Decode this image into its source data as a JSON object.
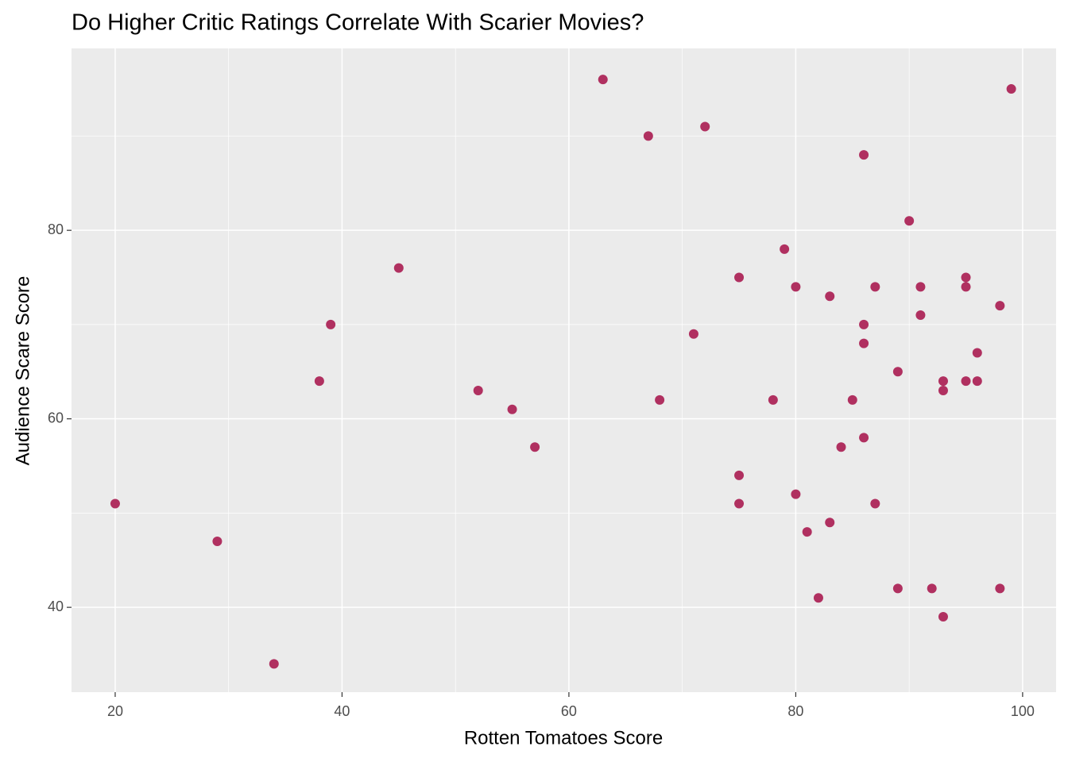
{
  "chart_data": {
    "type": "scatter",
    "title": "Do Higher Critic Ratings Correlate With Scarier Movies?",
    "x_label": "Rotten Tomatoes Score",
    "y_label": "Audience Scare Score",
    "color": "#b03060",
    "grid": true,
    "xlim": [
      16.15,
      102.95
    ],
    "ylim": [
      31,
      99.3
    ],
    "xticks": [
      20,
      40,
      60,
      80,
      100
    ],
    "yticks": [
      40,
      60,
      80
    ],
    "x": [
      20,
      29,
      34,
      38,
      39,
      45,
      52,
      55,
      57,
      63,
      67,
      68,
      71,
      72,
      75,
      75,
      75,
      78,
      79,
      80,
      80,
      81,
      82,
      83,
      83,
      84,
      85,
      86,
      86,
      86,
      86,
      87,
      87,
      89,
      89,
      90,
      91,
      91,
      92,
      93,
      93,
      93,
      95,
      95,
      95,
      96,
      96,
      98,
      98,
      99
    ],
    "values": [
      51,
      47,
      34,
      64,
      70,
      76,
      63,
      61,
      57,
      96,
      90,
      62,
      69,
      91,
      75,
      54,
      51,
      62,
      78,
      74,
      52,
      48,
      41,
      73,
      49,
      57,
      62,
      88,
      70,
      68,
      58,
      74,
      51,
      65,
      42,
      81,
      74,
      71,
      42,
      64,
      63,
      39,
      75,
      74,
      64,
      67,
      64,
      72,
      42,
      95
    ]
  }
}
